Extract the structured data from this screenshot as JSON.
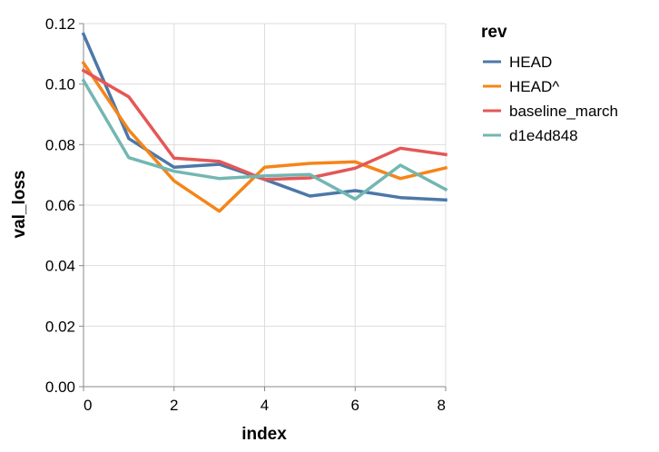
{
  "chart_data": {
    "type": "line",
    "xlabel": "index",
    "ylabel": "val_loss",
    "xlim": [
      0,
      8
    ],
    "ylim": [
      0,
      0.12
    ],
    "x_ticks": [
      0,
      2,
      4,
      6,
      8
    ],
    "x_tick_labels": [
      "0",
      "2",
      "4",
      "6",
      "8"
    ],
    "y_ticks": [
      0,
      0.02,
      0.04,
      0.06,
      0.08,
      0.1,
      0.12
    ],
    "y_tick_labels": [
      "0.00",
      "0.02",
      "0.04",
      "0.06",
      "0.08",
      "0.10",
      "0.12"
    ],
    "grid": true,
    "legend": {
      "title": "rev",
      "placement": "right"
    },
    "x": [
      0,
      1,
      2,
      3,
      4,
      5,
      6,
      7,
      8
    ],
    "series": [
      {
        "name": "HEAD",
        "color": "#4c78a8",
        "values": [
          0.1165,
          0.082,
          0.0725,
          0.0735,
          0.0685,
          0.063,
          0.0648,
          0.0625,
          0.0617
        ]
      },
      {
        "name": "HEAD^",
        "color": "#f58518",
        "values": [
          0.107,
          0.0848,
          0.068,
          0.058,
          0.0725,
          0.0738,
          0.0743,
          0.0688,
          0.0723
        ]
      },
      {
        "name": "baseline_march",
        "color": "#e45756",
        "values": [
          0.1045,
          0.0958,
          0.0755,
          0.0745,
          0.0685,
          0.069,
          0.0722,
          0.0788,
          0.0767
        ]
      },
      {
        "name": "d1e4d848",
        "color": "#72b7b2",
        "values": [
          0.1012,
          0.0757,
          0.0712,
          0.0688,
          0.0697,
          0.0701,
          0.062,
          0.0732,
          0.0652
        ]
      }
    ]
  }
}
